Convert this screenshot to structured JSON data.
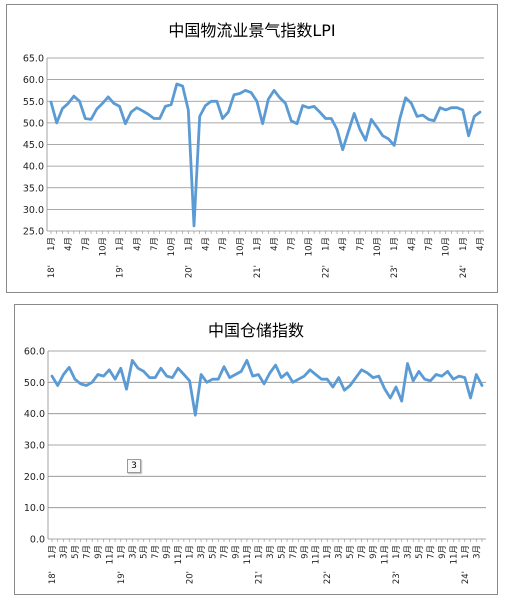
{
  "chart_data": [
    {
      "type": "line",
      "title": "中国物流业景气指数LPI",
      "ylim": [
        25.0,
        65.0
      ],
      "yticks": [
        "25.0",
        "30.0",
        "35.0",
        "40.0",
        "45.0",
        "50.0",
        "55.0",
        "60.0",
        "65.0"
      ],
      "grid": true,
      "line_color": "#5b9bd5",
      "x_labels": [
        {
          "i": 0,
          "month": "1月",
          "year": "18'"
        },
        {
          "i": 3,
          "month": "4月"
        },
        {
          "i": 6,
          "month": "7月"
        },
        {
          "i": 9,
          "month": "10月"
        },
        {
          "i": 12,
          "month": "1月",
          "year": "19'"
        },
        {
          "i": 15,
          "month": "4月"
        },
        {
          "i": 18,
          "month": "7月"
        },
        {
          "i": 21,
          "month": "10月"
        },
        {
          "i": 24,
          "month": "1月",
          "year": "20'"
        },
        {
          "i": 27,
          "month": "4月"
        },
        {
          "i": 30,
          "month": "7月"
        },
        {
          "i": 33,
          "month": "10月"
        },
        {
          "i": 36,
          "month": "1月",
          "year": "21'"
        },
        {
          "i": 39,
          "month": "4月"
        },
        {
          "i": 42,
          "month": "7月"
        },
        {
          "i": 45,
          "month": "10月"
        },
        {
          "i": 48,
          "month": "1月",
          "year": "22'"
        },
        {
          "i": 51,
          "month": "4月"
        },
        {
          "i": 54,
          "month": "7月"
        },
        {
          "i": 57,
          "month": "10月"
        },
        {
          "i": 60,
          "month": "1月",
          "year": "23'"
        },
        {
          "i": 63,
          "month": "4月"
        },
        {
          "i": 66,
          "month": "7月"
        },
        {
          "i": 69,
          "month": "10月"
        },
        {
          "i": 72,
          "month": "1月",
          "year": "24'"
        },
        {
          "i": 75,
          "month": "4月"
        }
      ],
      "values": [
        54.8,
        50.0,
        53.3,
        54.5,
        56.2,
        55.0,
        51.0,
        50.8,
        53.2,
        54.5,
        56.0,
        54.5,
        53.8,
        49.8,
        52.5,
        53.5,
        52.8,
        52.0,
        51.0,
        51.0,
        53.8,
        54.2,
        59.0,
        58.5,
        53.0,
        26.2,
        51.5,
        54.0,
        55.0,
        55.0,
        51.0,
        52.5,
        56.5,
        56.8,
        57.5,
        57.0,
        55.0,
        49.8,
        55.5,
        57.5,
        55.8,
        54.5,
        50.5,
        49.8,
        54.0,
        53.5,
        53.8,
        52.5,
        51.0,
        51.0,
        48.5,
        43.8,
        48.0,
        52.2,
        48.5,
        46.0,
        50.8,
        49.0,
        47.0,
        46.3,
        44.8,
        51.0,
        55.8,
        54.5,
        51.5,
        51.8,
        50.8,
        50.5,
        53.5,
        53.0,
        53.5,
        53.5,
        53.0,
        47.0,
        51.5,
        52.5
      ]
    },
    {
      "type": "line",
      "title": "中国仓储指数",
      "ylim": [
        0.0,
        60.0
      ],
      "yticks": [
        "0.0",
        "10.0",
        "20.0",
        "30.0",
        "40.0",
        "50.0",
        "60.0"
      ],
      "grid": true,
      "line_color": "#5b9bd5",
      "annotation": "3",
      "x_labels": [
        {
          "i": 0,
          "month": "1月",
          "year": "18'"
        },
        {
          "i": 2,
          "month": "3月"
        },
        {
          "i": 4,
          "month": "5月"
        },
        {
          "i": 6,
          "month": "7月"
        },
        {
          "i": 8,
          "month": "9月"
        },
        {
          "i": 10,
          "month": "11月"
        },
        {
          "i": 12,
          "month": "1月",
          "year": "19'"
        },
        {
          "i": 14,
          "month": "3月"
        },
        {
          "i": 16,
          "month": "5月"
        },
        {
          "i": 18,
          "month": "7月"
        },
        {
          "i": 20,
          "month": "9月"
        },
        {
          "i": 22,
          "month": "11月"
        },
        {
          "i": 24,
          "month": "1月",
          "year": "20'"
        },
        {
          "i": 26,
          "month": "3月"
        },
        {
          "i": 28,
          "month": "5月"
        },
        {
          "i": 30,
          "month": "7月"
        },
        {
          "i": 32,
          "month": "9月"
        },
        {
          "i": 34,
          "month": "11月"
        },
        {
          "i": 36,
          "month": "1月",
          "year": "21'"
        },
        {
          "i": 38,
          "month": "3月"
        },
        {
          "i": 40,
          "month": "5月"
        },
        {
          "i": 42,
          "month": "7月"
        },
        {
          "i": 44,
          "month": "9月"
        },
        {
          "i": 46,
          "month": "11月"
        },
        {
          "i": 48,
          "month": "1月",
          "year": "22'"
        },
        {
          "i": 50,
          "month": "3月"
        },
        {
          "i": 52,
          "month": "5月"
        },
        {
          "i": 54,
          "month": "7月"
        },
        {
          "i": 56,
          "month": "9月"
        },
        {
          "i": 58,
          "month": "11月"
        },
        {
          "i": 60,
          "month": "1月",
          "year": "23'"
        },
        {
          "i": 62,
          "month": "3月"
        },
        {
          "i": 64,
          "month": "5月"
        },
        {
          "i": 66,
          "month": "7月"
        },
        {
          "i": 68,
          "month": "9月"
        },
        {
          "i": 70,
          "month": "11月"
        },
        {
          "i": 72,
          "month": "1月",
          "year": "24'"
        },
        {
          "i": 74,
          "month": "3月"
        }
      ],
      "values": [
        52.0,
        49.0,
        52.5,
        54.8,
        51.0,
        49.5,
        49.0,
        50.0,
        52.5,
        52.0,
        54.0,
        51.0,
        54.5,
        47.8,
        57.0,
        54.5,
        53.5,
        51.5,
        51.5,
        54.5,
        52.0,
        51.5,
        54.5,
        52.5,
        50.5,
        39.5,
        52.5,
        50.0,
        51.0,
        51.0,
        55.0,
        51.5,
        52.5,
        53.5,
        57.0,
        52.0,
        52.5,
        49.5,
        53.0,
        55.5,
        51.5,
        53.0,
        50.0,
        51.0,
        52.0,
        54.0,
        52.5,
        51.0,
        51.0,
        48.5,
        51.5,
        47.5,
        49.0,
        51.5,
        54.0,
        53.0,
        51.5,
        52.0,
        48.0,
        45.0,
        48.5,
        44.0,
        56.0,
        50.5,
        53.5,
        51.0,
        50.5,
        52.5,
        52.0,
        53.5,
        51.0,
        52.0,
        51.5,
        45.0,
        52.5,
        49.0
      ]
    }
  ]
}
